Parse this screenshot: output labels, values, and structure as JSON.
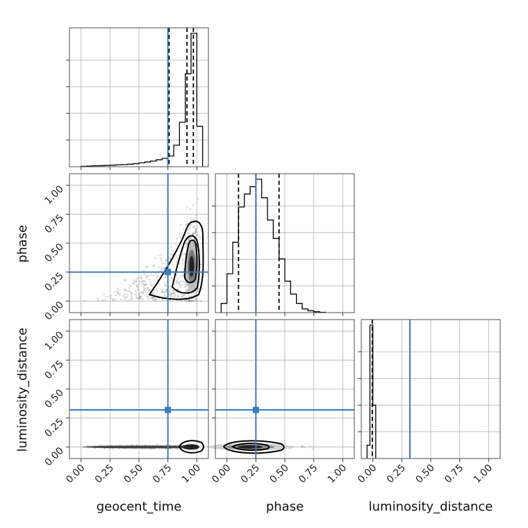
{
  "truth_color": "#3b7bbf",
  "chart_data": {
    "type": "corner",
    "parameters": [
      "geocent_time",
      "phase",
      "luminosity_distance"
    ],
    "axis_range": [
      -0.1,
      1.1
    ],
    "tick_values": [
      0.0,
      0.25,
      0.5,
      0.75,
      1.0
    ],
    "tick_labels": [
      "0.00",
      "0.25",
      "0.50",
      "0.75",
      "1.00"
    ],
    "truths": {
      "geocent_time": 0.75,
      "phase": 0.25,
      "luminosity_distance": 0.32
    },
    "grid": true,
    "marginals": [
      {
        "parameter": "geocent_time",
        "bin_edges": [
          0.0,
          0.05,
          0.1,
          0.15,
          0.2,
          0.25,
          0.3,
          0.35,
          0.4,
          0.45,
          0.5,
          0.55,
          0.6,
          0.65,
          0.7,
          0.75,
          0.8,
          0.85,
          0.9,
          0.95,
          1.0,
          1.05
        ],
        "counts": [
          0.3,
          0.5,
          0.7,
          0.8,
          1.0,
          1.2,
          1.4,
          1.6,
          1.9,
          2.3,
          2.9,
          3.5,
          4.2,
          5.2,
          6.2,
          8.0,
          16.0,
          33.0,
          69.0,
          99.0,
          30.0
        ],
        "quantiles": [
          0.76,
          0.915,
          0.97
        ]
      },
      {
        "parameter": "phase",
        "bin_edges": [
          -0.05,
          0.0,
          0.05,
          0.1,
          0.15,
          0.2,
          0.25,
          0.3,
          0.35,
          0.4,
          0.45,
          0.5,
          0.55,
          0.6,
          0.65,
          0.7,
          0.75,
          0.8,
          0.85
        ],
        "counts": [
          5,
          21,
          38,
          57,
          64,
          68,
          72,
          62,
          50,
          40,
          29,
          17,
          10,
          5,
          2,
          1,
          0.5,
          0.2
        ],
        "quantiles": [
          0.1,
          0.25,
          0.45
        ]
      },
      {
        "parameter": "luminosity_distance",
        "bin_edges": [
          -0.05,
          -0.025,
          0.0,
          0.025
        ],
        "counts": [
          10,
          100,
          40
        ],
        "quantiles": [
          -0.005
        ]
      }
    ],
    "joint": [
      {
        "x": "geocent_time",
        "y": "phase",
        "samples": "dense near geocent_time≈0.95, phase 0.1–0.7; sparse tail toward geocent_time 0"
      },
      {
        "x": "geocent_time",
        "y": "luminosity_distance",
        "samples": "band at luminosity_distance≈0, peak near geocent_time≈0.95"
      },
      {
        "x": "phase",
        "y": "luminosity_distance",
        "samples": "band at luminosity_distance≈0, peak near phase≈0.2"
      }
    ]
  }
}
